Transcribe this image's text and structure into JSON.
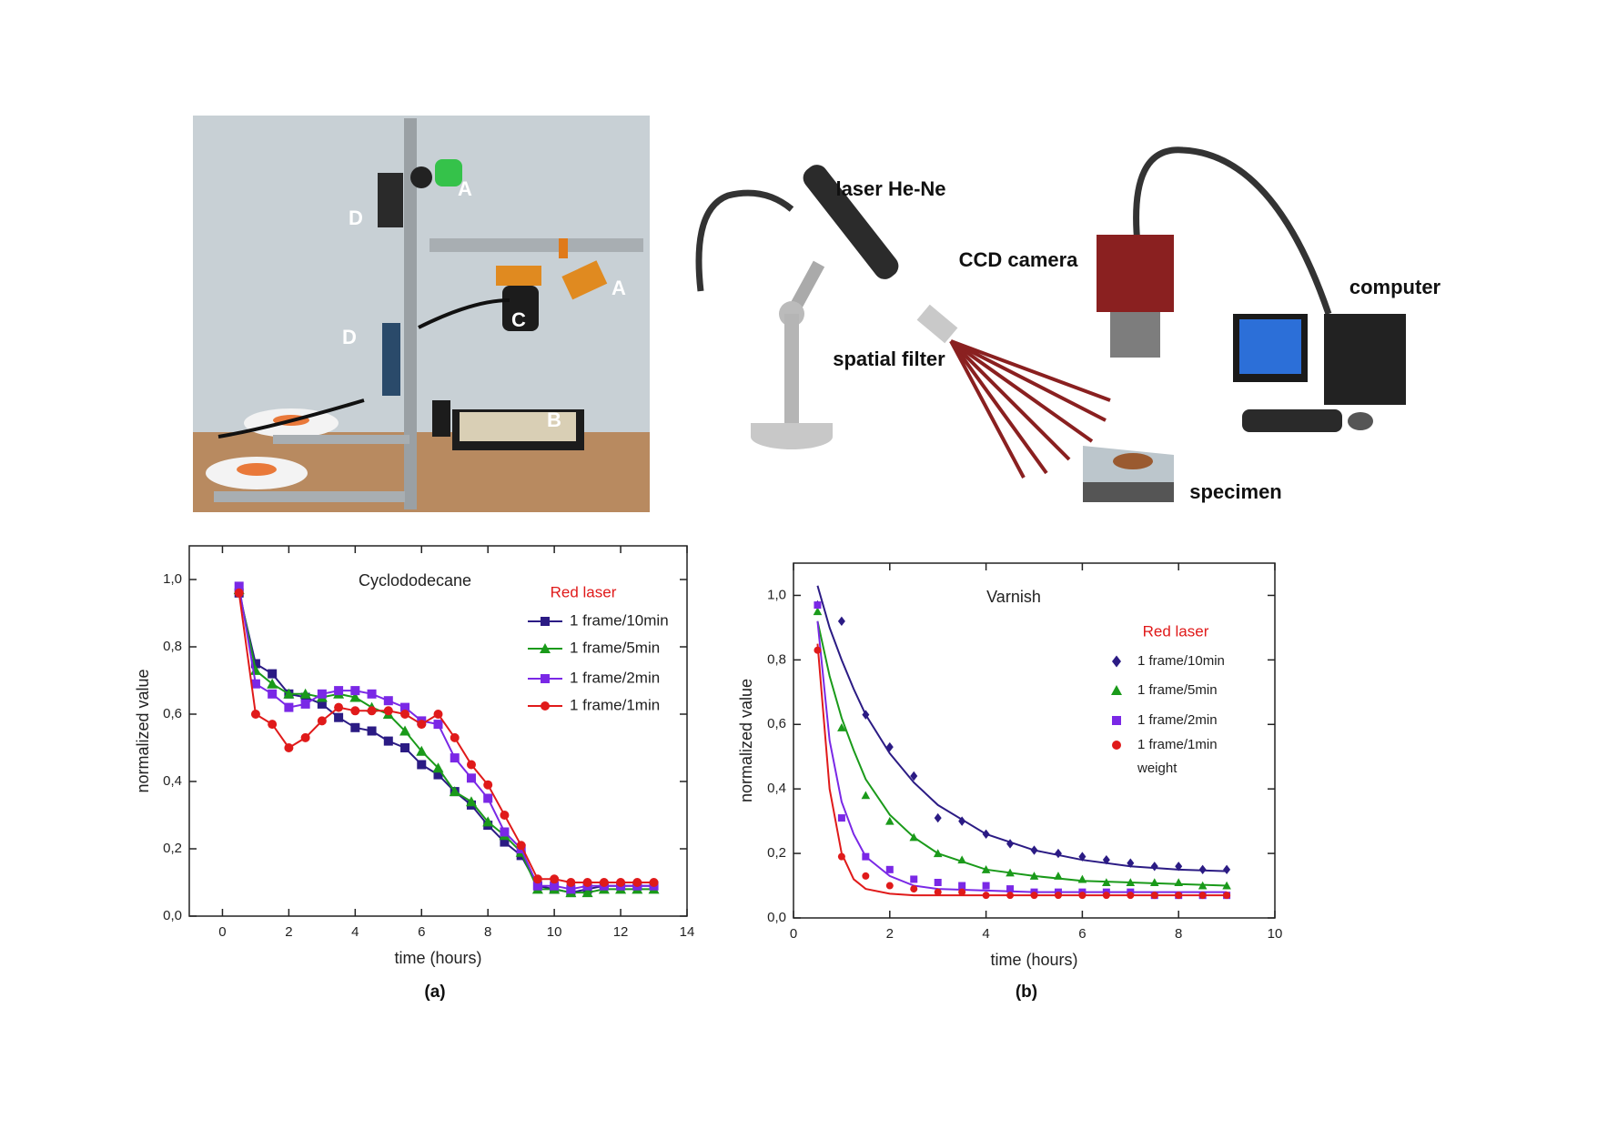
{
  "photo": {
    "labels": [
      "A",
      "D",
      "A",
      "C",
      "D",
      "B"
    ]
  },
  "diagram": {
    "labels": [
      "laser He-Ne",
      "CCD camera",
      "computer",
      "spatial filter",
      "specimen"
    ]
  },
  "chart_data": [
    {
      "type": "line",
      "title": "Cyclododecane",
      "legend_title": "Red laser",
      "xlabel": "time (hours)",
      "ylabel": "normalized value",
      "caption": "(a)",
      "xlim": [
        -1,
        14
      ],
      "ylim": [
        0,
        1.1
      ],
      "xticks": [
        0,
        2,
        4,
        6,
        8,
        10,
        12,
        14
      ],
      "yticks": [
        {
          "value": 0,
          "label": "0,0"
        },
        {
          "value": 0.2,
          "label": "0,2"
        },
        {
          "value": 0.4,
          "label": "0,4"
        },
        {
          "value": 0.6,
          "label": "0,6"
        },
        {
          "value": 0.8,
          "label": "0,8"
        },
        {
          "value": 1,
          "label": "1,0"
        }
      ],
      "x": [
        0.5,
        1,
        1.5,
        2,
        2.5,
        3,
        3.5,
        4,
        4.5,
        5,
        5.5,
        6,
        6.5,
        7,
        7.5,
        8,
        8.5,
        9,
        9.5,
        10,
        10.5,
        11,
        11.5,
        12,
        12.5,
        13
      ],
      "series": [
        {
          "name": "1 frame/10min",
          "color": "#2b1b84",
          "marker": "square",
          "values": [
            0.96,
            0.75,
            0.72,
            0.66,
            0.65,
            0.63,
            0.59,
            0.56,
            0.55,
            0.52,
            0.5,
            0.45,
            0.42,
            0.37,
            0.33,
            0.27,
            0.22,
            0.18,
            0.09,
            0.08,
            0.07,
            0.08,
            0.09,
            0.09,
            0.09,
            0.09
          ]
        },
        {
          "name": "1 frame/5min",
          "color": "#1a9a1a",
          "marker": "triangle",
          "values": [
            0.97,
            0.73,
            0.69,
            0.66,
            0.66,
            0.65,
            0.66,
            0.65,
            0.62,
            0.6,
            0.55,
            0.49,
            0.44,
            0.37,
            0.34,
            0.28,
            0.24,
            0.19,
            0.08,
            0.08,
            0.07,
            0.07,
            0.08,
            0.08,
            0.08,
            0.08
          ]
        },
        {
          "name": "1 frame/2min",
          "color": "#7a28e6",
          "marker": "square",
          "values": [
            0.98,
            0.69,
            0.66,
            0.62,
            0.63,
            0.66,
            0.67,
            0.67,
            0.66,
            0.64,
            0.62,
            0.58,
            0.57,
            0.47,
            0.41,
            0.35,
            0.25,
            0.2,
            0.09,
            0.09,
            0.08,
            0.09,
            0.09,
            0.09,
            0.09,
            0.09
          ]
        },
        {
          "name": "1 frame/1min",
          "color": "#e01a1a",
          "marker": "circle",
          "values": [
            0.96,
            0.6,
            0.57,
            0.5,
            0.53,
            0.58,
            0.62,
            0.61,
            0.61,
            0.61,
            0.6,
            0.57,
            0.6,
            0.53,
            0.45,
            0.39,
            0.3,
            0.21,
            0.11,
            0.11,
            0.1,
            0.1,
            0.1,
            0.1,
            0.1,
            0.1
          ]
        }
      ]
    },
    {
      "type": "scatter",
      "title": "Varnish",
      "legend_title": "Red laser",
      "legend_note": "weight",
      "xlabel": "time (hours)",
      "ylabel": "normalized value",
      "caption": "(b)",
      "xlim": [
        0,
        10
      ],
      "ylim": [
        0,
        1.1
      ],
      "xticks": [
        0,
        2,
        4,
        6,
        8,
        10
      ],
      "yticks": [
        {
          "value": 0,
          "label": "0,0"
        },
        {
          "value": 0.2,
          "label": "0,2"
        },
        {
          "value": 0.4,
          "label": "0,4"
        },
        {
          "value": 0.6,
          "label": "0,6"
        },
        {
          "value": 0.8,
          "label": "0,8"
        },
        {
          "value": 1,
          "label": "1,0"
        }
      ],
      "x": [
        0.5,
        1,
        1.5,
        2,
        2.5,
        3,
        3.5,
        4,
        4.5,
        5,
        5.5,
        6,
        6.5,
        7,
        7.5,
        8,
        8.5,
        9
      ],
      "fit_x": [
        0.5,
        0.75,
        1,
        1.25,
        1.5,
        2,
        2.5,
        3,
        4,
        5,
        6,
        7,
        8,
        9
      ],
      "series": [
        {
          "name": "1 frame/10min",
          "color": "#2b1b84",
          "marker": "diamond",
          "values": [
            0.97,
            0.92,
            0.63,
            0.53,
            0.44,
            0.31,
            0.3,
            0.26,
            0.23,
            0.21,
            0.2,
            0.19,
            0.18,
            0.17,
            0.16,
            0.16,
            0.15,
            0.15
          ],
          "fit": [
            1.03,
            0.9,
            0.8,
            0.71,
            0.63,
            0.51,
            0.42,
            0.35,
            0.26,
            0.21,
            0.18,
            0.16,
            0.15,
            0.145
          ]
        },
        {
          "name": "1 frame/5min",
          "color": "#1a9a1a",
          "marker": "triangle",
          "values": [
            0.95,
            0.59,
            0.38,
            0.3,
            0.25,
            0.2,
            0.18,
            0.15,
            0.14,
            0.13,
            0.13,
            0.12,
            0.11,
            0.11,
            0.11,
            0.11,
            0.1,
            0.1
          ],
          "fit": [
            0.92,
            0.75,
            0.62,
            0.52,
            0.43,
            0.32,
            0.25,
            0.2,
            0.15,
            0.13,
            0.115,
            0.11,
            0.105,
            0.1
          ]
        },
        {
          "name": "1 frame/2min",
          "color": "#7a28e6",
          "marker": "square",
          "values": [
            0.97,
            0.31,
            0.19,
            0.15,
            0.12,
            0.11,
            0.1,
            0.1,
            0.09,
            0.08,
            0.08,
            0.08,
            0.08,
            0.08,
            0.07,
            0.07,
            0.07,
            0.07
          ],
          "fit": [
            0.92,
            0.55,
            0.36,
            0.26,
            0.19,
            0.13,
            0.1,
            0.09,
            0.085,
            0.08,
            0.08,
            0.08,
            0.08,
            0.08
          ]
        },
        {
          "name": "1 frame/1min",
          "color": "#e01a1a",
          "marker": "circle",
          "values": [
            0.83,
            0.19,
            0.13,
            0.1,
            0.09,
            0.08,
            0.08,
            0.07,
            0.07,
            0.07,
            0.07,
            0.07,
            0.07,
            0.07,
            0.07,
            0.07,
            0.07,
            0.07
          ],
          "fit": [
            0.85,
            0.4,
            0.2,
            0.12,
            0.09,
            0.075,
            0.07,
            0.07,
            0.07,
            0.07,
            0.07,
            0.07,
            0.07,
            0.07
          ]
        }
      ]
    }
  ]
}
